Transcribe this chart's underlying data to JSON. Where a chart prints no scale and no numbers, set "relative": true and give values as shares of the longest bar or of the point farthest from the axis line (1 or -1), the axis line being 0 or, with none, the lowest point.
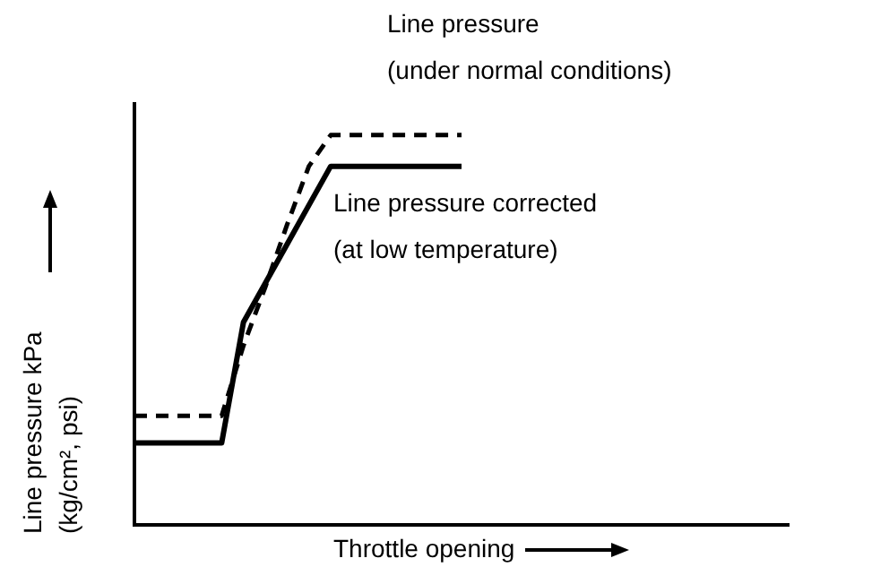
{
  "chart_data": {
    "type": "line",
    "relative": true,
    "xlabel": "Throttle opening",
    "ylabel": "Line pressure kPa (kg/cm², psi)",
    "categories": [
      null,
      null,
      null,
      null,
      null,
      null,
      null,
      null,
      null,
      null,
      null,
      null,
      null,
      null,
      null,
      null,
      null,
      null,
      null,
      null,
      null,
      null,
      null,
      null,
      null,
      null,
      null,
      null,
      null,
      null,
      null
    ],
    "series": [
      {
        "name": "Line pressure (under normal conditions)",
        "color": "#000000",
        "line_style": "dashed",
        "values": [
          0.28,
          0.28,
          0.28,
          0.28,
          0.28,
          0.46,
          0.61,
          0.77,
          0.92,
          1,
          1,
          1,
          1,
          1,
          1,
          1,
          null,
          null,
          null,
          null,
          null,
          null,
          null,
          null,
          null,
          null,
          null,
          null,
          null,
          null,
          null
        ]
      },
      {
        "name": "Line pressure corrected (at low temperature)",
        "color": "#000000",
        "line_style": "solid",
        "values": [
          0.21,
          0.21,
          0.21,
          0.21,
          0.21,
          0.52,
          0.62,
          0.72,
          0.82,
          0.92,
          0.92,
          0.92,
          0.92,
          0.92,
          0.92,
          0.92,
          null,
          null,
          null,
          null,
          null,
          null,
          null,
          null,
          null,
          null,
          null,
          null,
          null,
          null,
          null
        ]
      }
    ],
    "legend": false,
    "grid": false,
    "tick_labels": false,
    "marker": "none"
  }
}
